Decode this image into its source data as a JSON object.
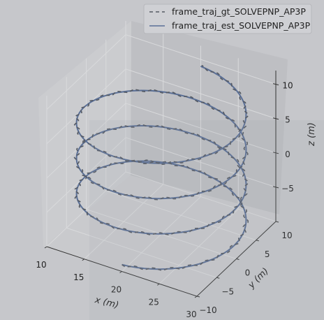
{
  "chart_data": {
    "type": "line",
    "projection": "3d",
    "title": "",
    "legend": {
      "position": "top-right",
      "entries": [
        {
          "label": "frame_traj_gt_SOLVEPNP_AP3P",
          "style": "dashed",
          "color": "#555a63"
        },
        {
          "label": "frame_traj_est_SOLVEPNP_AP3P",
          "style": "solid",
          "color": "#5a6f96"
        }
      ]
    },
    "axes": {
      "x": {
        "label": "x (m)",
        "ticks": [
          "10",
          "15",
          "20",
          "25",
          "30"
        ],
        "range": [
          10,
          30
        ]
      },
      "y": {
        "label": "y (m)",
        "ticks": [
          "−10",
          "−5",
          "0",
          "5",
          "10"
        ],
        "range": [
          -10,
          10
        ]
      },
      "z": {
        "label": "z (m)",
        "ticks": [
          "−5",
          "0",
          "5",
          "10"
        ],
        "range": [
          -10,
          12
        ]
      }
    },
    "grid": true,
    "series": [
      {
        "name": "frame_traj_gt_SOLVEPNP_AP3P",
        "kind": "helix",
        "center_x": 20,
        "center_y": 0,
        "radius": 10,
        "z_start": -9,
        "z_end": 9,
        "turns": 3.5
      },
      {
        "name": "frame_traj_est_SOLVEPNP_AP3P",
        "kind": "helix",
        "center_x": 20,
        "center_y": 0,
        "radius": 10,
        "z_start": -9,
        "z_end": 9,
        "turns": 3.5
      }
    ]
  },
  "colors": {
    "background": "#c6c7cb",
    "pane_back": "#bebfc3",
    "pane_left": "#cbcccf",
    "floor": "#c9cacd",
    "gt_line": "#555a63",
    "est_line": "#5a6f96"
  }
}
